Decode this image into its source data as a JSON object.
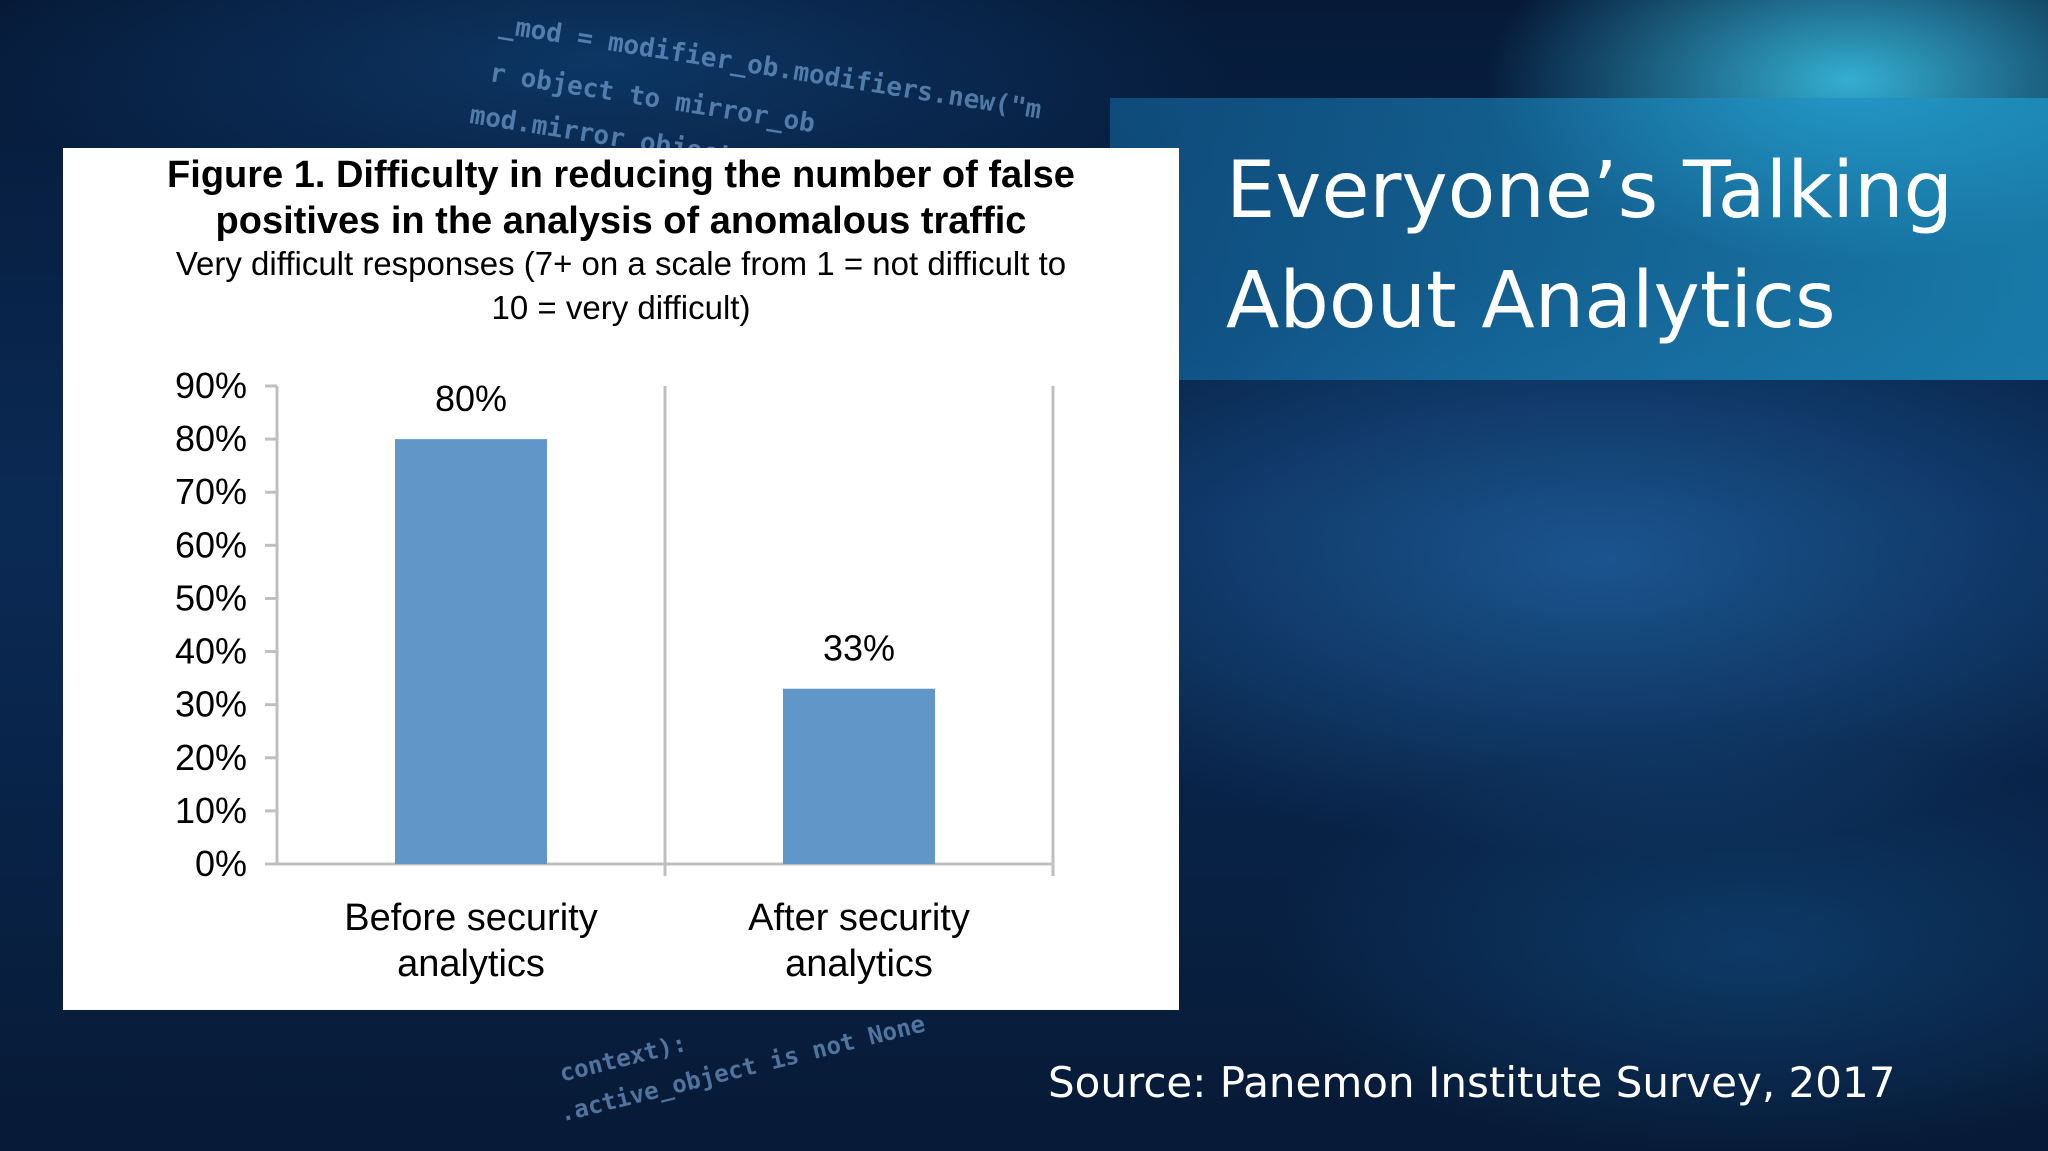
{
  "slide": {
    "title_line1": "Everyone’s Talking",
    "title_line2": "About Analytics",
    "source": "Source:  Panemon Institute Survey, 2017"
  },
  "background_code": {
    "top_lines": [
      "_mod = modifier_ob.modifiers.new(\"m",
      "r object to mirror_ob",
      "mod.mirror_object = "
    ],
    "bottom_lines": [
      "context):",
      ".active_object is not None"
    ]
  },
  "colors": {
    "bar": "#6196c8",
    "axis": "#bfbfbf",
    "card": "#ffffff",
    "title_text": "#ffffff"
  },
  "chart_data": {
    "type": "bar",
    "title_line1": "Figure 1. Difficulty in reducing the number of false",
    "title_line2": "positives in the analysis of anomalous traffic",
    "subtitle_line1": "Very difficult responses (7+ on a scale from 1 = not difficult to",
    "subtitle_line2": "10 = very difficult)",
    "categories": [
      [
        "Before security",
        "analytics"
      ],
      [
        "After security",
        "analytics"
      ]
    ],
    "values": [
      80,
      33
    ],
    "data_labels": [
      "80%",
      "33%"
    ],
    "ylim": [
      0,
      90
    ],
    "yticks": [
      0,
      10,
      20,
      30,
      40,
      50,
      60,
      70,
      80,
      90
    ],
    "ytick_labels": [
      "0%",
      "10%",
      "20%",
      "30%",
      "40%",
      "50%",
      "60%",
      "70%",
      "80%",
      "90%"
    ],
    "grid": false,
    "legend": "none"
  }
}
